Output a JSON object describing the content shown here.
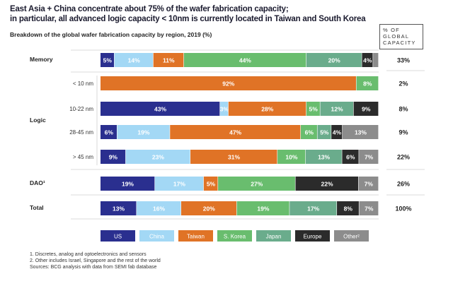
{
  "title_lines": [
    "East Asia + China concentrate about 75% of the wafer fabrication capacity;",
    "in particular, all advanced logic capacity < 10nm is currently located in Taiwan and South Korea"
  ],
  "subtitle": "Breakdown of the global wafer fabrication capacity by region, 2019 (%)",
  "pct_header_lines": [
    "% OF",
    "GLOBAL",
    "CAPACITY"
  ],
  "footnotes": [
    "1. Discretes, analog and optoelectronics and sensors",
    "2. Other includes Israel, Singapore and the rest of the world",
    "Sources: BCG analysis with data from SEMI fab database"
  ],
  "chart_data": {
    "type": "bar",
    "orientation": "horizontal-stacked-100",
    "title": "Breakdown of the global wafer fabrication capacity by region, 2019 (%)",
    "series": [
      {
        "name": "US",
        "color": "#2a2f8f"
      },
      {
        "name": "China",
        "color": "#a3d8f5"
      },
      {
        "name": "Taiwan",
        "color": "#e07326"
      },
      {
        "name": "S. Korea",
        "color": "#69bd6e"
      },
      {
        "name": "Japan",
        "color": "#6aac8c"
      },
      {
        "name": "Europe",
        "color": "#2b2b2b"
      },
      {
        "name": "Other²",
        "color": "#8c8c8c"
      }
    ],
    "groups": [
      {
        "label": "Memory",
        "rows": [
          {
            "label": "",
            "share": "33%",
            "values": [
              5,
              14,
              11,
              44,
              20,
              4,
              2
            ],
            "labels": [
              "5%",
              "14%",
              "11%",
              "44%",
              "20%",
              "4%",
              ""
            ]
          }
        ]
      },
      {
        "label": "Logic",
        "rows": [
          {
            "label": "< 10 nm",
            "share": "2%",
            "values": [
              0,
              0,
              92,
              8,
              0,
              0,
              0
            ],
            "labels": [
              "",
              "",
              "92%",
              "8%",
              "",
              "",
              ""
            ]
          },
          {
            "label": "10-22 nm",
            "share": "8%",
            "values": [
              43,
              3,
              28,
              5,
              12,
              9,
              0
            ],
            "labels": [
              "43%",
              "3%",
              "28%",
              "5%",
              "12%",
              "9%",
              ""
            ]
          },
          {
            "label": "28-45 nm",
            "share": "9%",
            "values": [
              6,
              19,
              47,
              6,
              5,
              4,
              13
            ],
            "labels": [
              "6%",
              "19%",
              "47%",
              "6%",
              "5%",
              "4%",
              "13%"
            ]
          },
          {
            "label": "> 45 nm",
            "share": "22%",
            "values": [
              9,
              23,
              31,
              10,
              13,
              6,
              7
            ],
            "labels": [
              "9%",
              "23%",
              "31%",
              "10%",
              "13%",
              "6%",
              "7%"
            ]
          }
        ]
      },
      {
        "label": "DAO¹",
        "rows": [
          {
            "label": "",
            "share": "26%",
            "values": [
              19,
              17,
              5,
              27,
              0,
              22,
              7
            ],
            "labels": [
              "19%",
              "17%",
              "5%",
              "27%",
              "",
              "22%",
              "7%"
            ]
          }
        ]
      },
      {
        "label": "Total",
        "rows": [
          {
            "label": "",
            "share": "100%",
            "values": [
              13,
              16,
              20,
              19,
              17,
              8,
              7
            ],
            "labels": [
              "13%",
              "16%",
              "20%",
              "19%",
              "17%",
              "8%",
              "7%"
            ]
          }
        ]
      }
    ]
  }
}
